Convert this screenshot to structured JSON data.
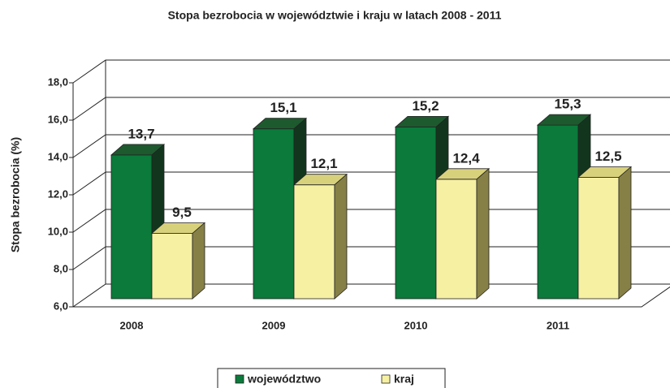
{
  "chart_data": {
    "type": "bar3d",
    "title": "Stopa bezrobocia w województwie i kraju w latach 2008 - 2011",
    "y_label": "Stopa bezrobocia  (%)",
    "categories": [
      "2008",
      "2009",
      "2010",
      "2011"
    ],
    "series": [
      {
        "name": "województwo",
        "color": "#0b7a3b",
        "values": [
          13.7,
          15.1,
          15.2,
          15.3
        ],
        "value_labels": [
          "13,7",
          "15,1",
          "15,2",
          "15,3"
        ]
      },
      {
        "name": "kraj",
        "color": "#f6f0a3",
        "values": [
          9.5,
          12.1,
          12.4,
          12.5
        ],
        "value_labels": [
          "9,5",
          "12,1",
          "12,4",
          "12,5"
        ]
      }
    ],
    "ylim": [
      6,
      18
    ],
    "yticks": [
      {
        "value": 6,
        "label": "6,0"
      },
      {
        "value": 8,
        "label": "8,0"
      },
      {
        "value": 10,
        "label": "10,0"
      },
      {
        "value": 12,
        "label": "12,0"
      },
      {
        "value": 14,
        "label": "14,0"
      },
      {
        "value": 16,
        "label": "16,0"
      },
      {
        "value": 18,
        "label": "18,0"
      }
    ],
    "grid": true
  }
}
